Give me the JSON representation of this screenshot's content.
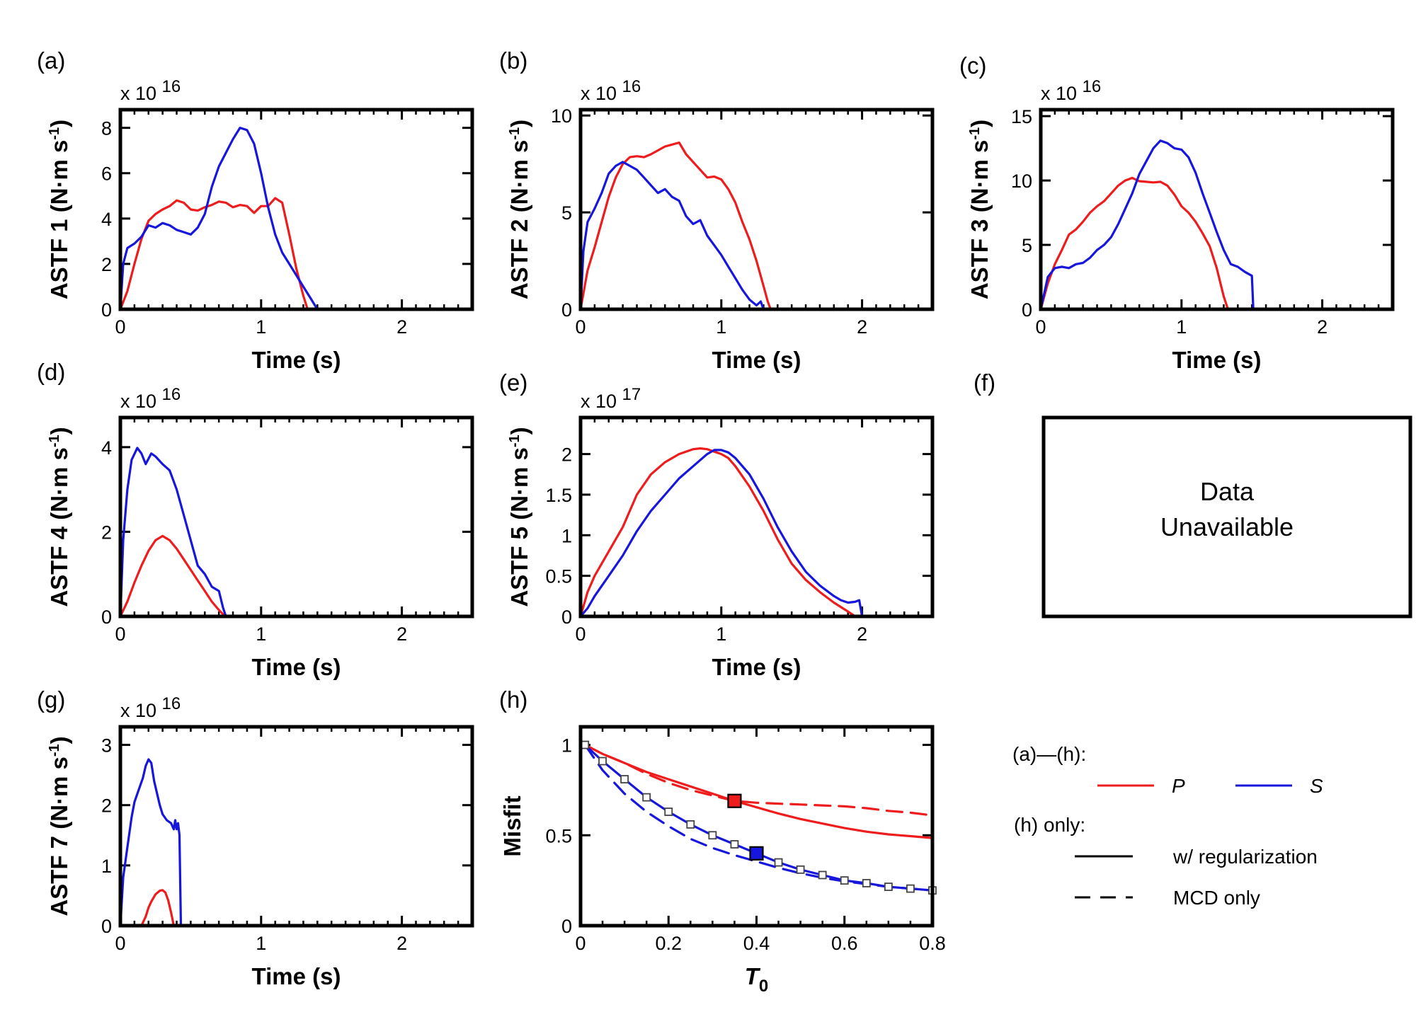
{
  "colors": {
    "P": "#ee1c1c",
    "S": "#1616dd",
    "axis": "#000000",
    "marker_face": "#ffffff"
  },
  "chart_data": [
    {
      "panel": "(a)",
      "type": "line",
      "xlabel": "Time (s)",
      "ylabel": "ASTF 1 (N·m s⁻¹)",
      "multiplier": "x 10",
      "exponent": "16",
      "xlim": [
        0,
        2.5
      ],
      "ylim": [
        0,
        8.8
      ],
      "xticks": [
        0,
        1,
        2
      ],
      "yticks": [
        0,
        2,
        4,
        6,
        8
      ],
      "series": [
        {
          "name": "P",
          "x": [
            0,
            0.05,
            0.1,
            0.15,
            0.2,
            0.25,
            0.3,
            0.35,
            0.4,
            0.45,
            0.5,
            0.55,
            0.6,
            0.65,
            0.7,
            0.75,
            0.8,
            0.85,
            0.9,
            0.95,
            1.0,
            1.05,
            1.1,
            1.15,
            1.2,
            1.25,
            1.3,
            1.33
          ],
          "y": [
            0,
            0.8,
            2.0,
            3.1,
            3.9,
            4.2,
            4.4,
            4.55,
            4.8,
            4.7,
            4.4,
            4.35,
            4.5,
            4.6,
            4.75,
            4.7,
            4.5,
            4.6,
            4.55,
            4.25,
            4.55,
            4.55,
            4.9,
            4.7,
            3.3,
            1.8,
            0.6,
            0
          ]
        },
        {
          "name": "S",
          "x": [
            0,
            0.02,
            0.05,
            0.1,
            0.15,
            0.2,
            0.25,
            0.3,
            0.35,
            0.4,
            0.45,
            0.5,
            0.55,
            0.6,
            0.65,
            0.7,
            0.75,
            0.8,
            0.85,
            0.9,
            0.95,
            1.0,
            1.05,
            1.1,
            1.15,
            1.2,
            1.25,
            1.3,
            1.35,
            1.38,
            1.4
          ],
          "y": [
            0,
            2.0,
            2.7,
            2.9,
            3.2,
            3.7,
            3.6,
            3.8,
            3.7,
            3.5,
            3.4,
            3.3,
            3.6,
            4.2,
            5.4,
            6.3,
            6.9,
            7.5,
            8.0,
            7.9,
            7.3,
            6.0,
            4.5,
            3.3,
            2.5,
            2.0,
            1.5,
            1.0,
            0.5,
            0.2,
            0
          ]
        }
      ]
    },
    {
      "panel": "(b)",
      "type": "line",
      "xlabel": "Time (s)",
      "ylabel": "ASTF 2 (N·m s⁻¹)",
      "multiplier": "x 10",
      "exponent": "16",
      "xlim": [
        0,
        2.5
      ],
      "ylim": [
        0,
        10.3
      ],
      "xticks": [
        0,
        1,
        2
      ],
      "yticks": [
        0,
        5,
        10
      ],
      "series": [
        {
          "name": "P",
          "x": [
            0,
            0.05,
            0.1,
            0.15,
            0.2,
            0.25,
            0.3,
            0.35,
            0.4,
            0.45,
            0.5,
            0.55,
            0.6,
            0.65,
            0.7,
            0.75,
            0.8,
            0.85,
            0.9,
            0.95,
            1.0,
            1.05,
            1.1,
            1.15,
            1.2,
            1.25,
            1.3,
            1.33,
            1.35
          ],
          "y": [
            0,
            2.0,
            3.2,
            4.5,
            5.8,
            6.8,
            7.5,
            7.85,
            7.9,
            7.85,
            8.0,
            8.2,
            8.4,
            8.5,
            8.6,
            8.0,
            7.6,
            7.2,
            6.8,
            6.85,
            6.7,
            6.2,
            5.5,
            4.5,
            3.6,
            2.5,
            1.2,
            0.4,
            0
          ]
        },
        {
          "name": "S",
          "x": [
            0,
            0.02,
            0.05,
            0.1,
            0.15,
            0.2,
            0.25,
            0.3,
            0.35,
            0.4,
            0.45,
            0.5,
            0.55,
            0.6,
            0.65,
            0.7,
            0.75,
            0.8,
            0.85,
            0.9,
            0.95,
            1.0,
            1.05,
            1.1,
            1.15,
            1.2,
            1.25,
            1.28,
            1.3
          ],
          "y": [
            0,
            3.0,
            4.5,
            5.2,
            6.0,
            7.0,
            7.4,
            7.6,
            7.4,
            7.2,
            6.8,
            6.4,
            6.0,
            6.2,
            5.8,
            5.6,
            4.8,
            4.4,
            4.6,
            3.8,
            3.3,
            2.8,
            2.2,
            1.6,
            1.0,
            0.5,
            0.2,
            0.4,
            0
          ]
        }
      ]
    },
    {
      "panel": "(c)",
      "type": "line",
      "xlabel": "Time (s)",
      "ylabel": "ASTF 3 (N·m s⁻¹)",
      "multiplier": "x 10",
      "exponent": "16",
      "xlim": [
        0,
        2.5
      ],
      "ylim": [
        0,
        15.5
      ],
      "xticks": [
        0,
        1,
        2
      ],
      "yticks": [
        0,
        5,
        10,
        15
      ],
      "series": [
        {
          "name": "P",
          "x": [
            0,
            0.05,
            0.1,
            0.15,
            0.2,
            0.25,
            0.3,
            0.35,
            0.4,
            0.45,
            0.5,
            0.55,
            0.6,
            0.65,
            0.7,
            0.75,
            0.8,
            0.85,
            0.9,
            0.95,
            1.0,
            1.05,
            1.1,
            1.15,
            1.2,
            1.25,
            1.3,
            1.33
          ],
          "y": [
            0,
            2.0,
            3.5,
            4.6,
            5.8,
            6.2,
            6.8,
            7.5,
            8.0,
            8.4,
            9.0,
            9.6,
            10.0,
            10.2,
            9.95,
            9.9,
            9.85,
            9.9,
            9.6,
            8.9,
            8.0,
            7.5,
            6.8,
            5.9,
            4.9,
            3.2,
            1.0,
            0
          ]
        },
        {
          "name": "S",
          "x": [
            0,
            0.03,
            0.05,
            0.1,
            0.15,
            0.2,
            0.25,
            0.3,
            0.35,
            0.4,
            0.45,
            0.5,
            0.55,
            0.6,
            0.65,
            0.7,
            0.75,
            0.8,
            0.85,
            0.9,
            0.95,
            1.0,
            1.05,
            1.1,
            1.15,
            1.2,
            1.25,
            1.3,
            1.35,
            1.4,
            1.45,
            1.5,
            1.51
          ],
          "y": [
            0,
            1.5,
            2.5,
            3.2,
            3.3,
            3.2,
            3.5,
            3.6,
            4.0,
            4.6,
            5.0,
            5.6,
            6.6,
            7.8,
            9.0,
            10.5,
            11.5,
            12.5,
            13.1,
            12.9,
            12.5,
            12.4,
            11.8,
            10.6,
            9.0,
            7.5,
            6.0,
            4.6,
            3.5,
            3.3,
            2.9,
            2.6,
            0
          ]
        }
      ]
    },
    {
      "panel": "(d)",
      "type": "line",
      "xlabel": "Time (s)",
      "ylabel": "ASTF 4 (N·m s⁻¹)",
      "multiplier": "x 10",
      "exponent": "16",
      "xlim": [
        0,
        2.5
      ],
      "ylim": [
        0,
        4.7
      ],
      "xticks": [
        0,
        1,
        2
      ],
      "yticks": [
        0,
        2,
        4
      ],
      "series": [
        {
          "name": "P",
          "x": [
            0,
            0.05,
            0.1,
            0.15,
            0.2,
            0.25,
            0.3,
            0.35,
            0.4,
            0.45,
            0.5,
            0.55,
            0.6,
            0.65,
            0.7,
            0.73
          ],
          "y": [
            0,
            0.35,
            0.8,
            1.2,
            1.55,
            1.8,
            1.9,
            1.8,
            1.6,
            1.35,
            1.1,
            0.85,
            0.6,
            0.35,
            0.15,
            0.05
          ]
        },
        {
          "name": "S",
          "x": [
            0,
            0.02,
            0.05,
            0.08,
            0.12,
            0.15,
            0.18,
            0.22,
            0.25,
            0.3,
            0.35,
            0.4,
            0.45,
            0.5,
            0.55,
            0.6,
            0.65,
            0.7,
            0.73,
            0.75
          ],
          "y": [
            0,
            1.8,
            3.0,
            3.7,
            3.98,
            3.85,
            3.6,
            3.85,
            3.78,
            3.6,
            3.45,
            3.0,
            2.4,
            1.8,
            1.2,
            1.0,
            0.7,
            0.6,
            0.2,
            0
          ]
        }
      ]
    },
    {
      "panel": "(e)",
      "type": "line",
      "xlabel": "Time (s)",
      "ylabel": "ASTF 5 (N·m s⁻¹)",
      "multiplier": "x 10",
      "exponent": "17",
      "xlim": [
        0,
        2.5
      ],
      "ylim": [
        0,
        2.45
      ],
      "xticks": [
        0,
        1,
        2
      ],
      "yticks": [
        0,
        0.5,
        1,
        1.5,
        2
      ],
      "series": [
        {
          "name": "P",
          "x": [
            0,
            0.05,
            0.1,
            0.2,
            0.3,
            0.4,
            0.5,
            0.6,
            0.7,
            0.8,
            0.85,
            0.9,
            0.95,
            1.0,
            1.05,
            1.1,
            1.2,
            1.3,
            1.4,
            1.5,
            1.6,
            1.7,
            1.8,
            1.9,
            1.95
          ],
          "y": [
            0,
            0.3,
            0.5,
            0.8,
            1.1,
            1.5,
            1.75,
            1.9,
            2.0,
            2.06,
            2.07,
            2.06,
            2.03,
            2.0,
            1.95,
            1.85,
            1.6,
            1.3,
            0.95,
            0.65,
            0.45,
            0.3,
            0.17,
            0.06,
            0
          ]
        },
        {
          "name": "S",
          "x": [
            0,
            0.05,
            0.1,
            0.2,
            0.3,
            0.4,
            0.5,
            0.6,
            0.7,
            0.8,
            0.9,
            0.95,
            1.0,
            1.05,
            1.1,
            1.2,
            1.3,
            1.4,
            1.5,
            1.6,
            1.7,
            1.8,
            1.85,
            1.9,
            1.95,
            1.98,
            2.0
          ],
          "y": [
            0,
            0.1,
            0.25,
            0.5,
            0.75,
            1.05,
            1.3,
            1.5,
            1.7,
            1.85,
            2.0,
            2.05,
            2.05,
            2.02,
            1.95,
            1.75,
            1.45,
            1.1,
            0.8,
            0.55,
            0.38,
            0.25,
            0.2,
            0.17,
            0.18,
            0.2,
            0
          ]
        }
      ]
    },
    {
      "panel": "(g)",
      "type": "line",
      "xlabel": "Time (s)",
      "ylabel": "ASTF 7 (N·m s⁻¹)",
      "multiplier": "x 10",
      "exponent": "16",
      "xlim": [
        0,
        2.5
      ],
      "ylim": [
        0,
        3.3
      ],
      "xticks": [
        0,
        1,
        2
      ],
      "yticks": [
        0,
        1,
        2,
        3
      ],
      "series": [
        {
          "name": "P",
          "x": [
            0.15,
            0.18,
            0.2,
            0.22,
            0.25,
            0.28,
            0.3,
            0.32,
            0.34,
            0.36,
            0.38
          ],
          "y": [
            0,
            0.15,
            0.3,
            0.4,
            0.52,
            0.58,
            0.59,
            0.55,
            0.42,
            0.22,
            0
          ]
        },
        {
          "name": "S",
          "x": [
            0,
            0.02,
            0.05,
            0.08,
            0.1,
            0.13,
            0.16,
            0.18,
            0.2,
            0.22,
            0.24,
            0.26,
            0.28,
            0.3,
            0.33,
            0.36,
            0.38,
            0.39,
            0.4,
            0.41,
            0.42,
            0.43
          ],
          "y": [
            0,
            0.8,
            1.3,
            1.8,
            2.05,
            2.25,
            2.45,
            2.65,
            2.76,
            2.7,
            2.4,
            2.2,
            2.0,
            1.85,
            1.75,
            1.7,
            1.6,
            1.75,
            1.6,
            1.7,
            1.5,
            0
          ]
        }
      ]
    },
    {
      "panel": "(h)",
      "type": "line",
      "xlabel": "T",
      "xlabel_sub": "0",
      "ylabel": "Misfit",
      "xlim": [
        0,
        0.8
      ],
      "ylim": [
        0,
        1.1
      ],
      "xticks": [
        0,
        0.2,
        0.4,
        0.6,
        0.8
      ],
      "yticks": [
        0,
        0.5,
        1
      ],
      "xtick_labels": [
        "0",
        "0.2",
        "0.4",
        "0.6",
        "0.8"
      ],
      "ytick_labels": [
        "0",
        "0.5",
        "1"
      ],
      "series": [
        {
          "name": "P",
          "style": "solid",
          "x": [
            0.01,
            0.05,
            0.1,
            0.15,
            0.2,
            0.25,
            0.3,
            0.35,
            0.4,
            0.45,
            0.5,
            0.55,
            0.6,
            0.65,
            0.7,
            0.75,
            0.8
          ],
          "y": [
            1.0,
            0.95,
            0.9,
            0.85,
            0.81,
            0.77,
            0.73,
            0.69,
            0.655,
            0.62,
            0.59,
            0.565,
            0.54,
            0.52,
            0.505,
            0.495,
            0.485
          ]
        },
        {
          "name": "P",
          "style": "dashed",
          "x": [
            0.01,
            0.05,
            0.1,
            0.15,
            0.2,
            0.25,
            0.3,
            0.35,
            0.4,
            0.45,
            0.5,
            0.55,
            0.6,
            0.65,
            0.7,
            0.75,
            0.8
          ],
          "y": [
            1.0,
            0.95,
            0.9,
            0.84,
            0.79,
            0.75,
            0.72,
            0.69,
            0.68,
            0.675,
            0.67,
            0.665,
            0.66,
            0.65,
            0.635,
            0.625,
            0.61
          ]
        },
        {
          "name": "S",
          "style": "solid",
          "markers": true,
          "x": [
            0.01,
            0.05,
            0.1,
            0.15,
            0.2,
            0.25,
            0.3,
            0.35,
            0.4,
            0.45,
            0.5,
            0.55,
            0.6,
            0.65,
            0.7,
            0.75,
            0.8
          ],
          "y": [
            1.0,
            0.91,
            0.81,
            0.71,
            0.63,
            0.56,
            0.5,
            0.45,
            0.4,
            0.35,
            0.31,
            0.28,
            0.25,
            0.235,
            0.215,
            0.205,
            0.195
          ]
        },
        {
          "name": "S",
          "style": "dashed",
          "x": [
            0.01,
            0.05,
            0.1,
            0.15,
            0.2,
            0.25,
            0.3,
            0.35,
            0.4,
            0.45,
            0.5,
            0.55,
            0.6,
            0.65,
            0.7,
            0.75,
            0.8
          ],
          "y": [
            1.0,
            0.86,
            0.73,
            0.63,
            0.55,
            0.48,
            0.43,
            0.39,
            0.355,
            0.32,
            0.29,
            0.265,
            0.245,
            0.23,
            0.215,
            0.205,
            0.195
          ]
        }
      ],
      "highlight": [
        {
          "series": "P",
          "x": 0.35,
          "y": 0.69
        },
        {
          "series": "S",
          "x": 0.4,
          "y": 0.4
        }
      ]
    }
  ],
  "panel_labels": {
    "a": "(a)",
    "b": "(b)",
    "c": "(c)",
    "d": "(d)",
    "e": "(e)",
    "f": "(f)",
    "g": "(g)",
    "h": "(h)"
  },
  "panel_f": {
    "line1": "Data",
    "line2": "Unavailable"
  },
  "legend": {
    "header_all": "(a)—(h):",
    "P_label": "P",
    "S_label": "S",
    "header_h": "(h) only:",
    "solid_label": "w/ regularization",
    "dashed_label": "MCD only"
  }
}
